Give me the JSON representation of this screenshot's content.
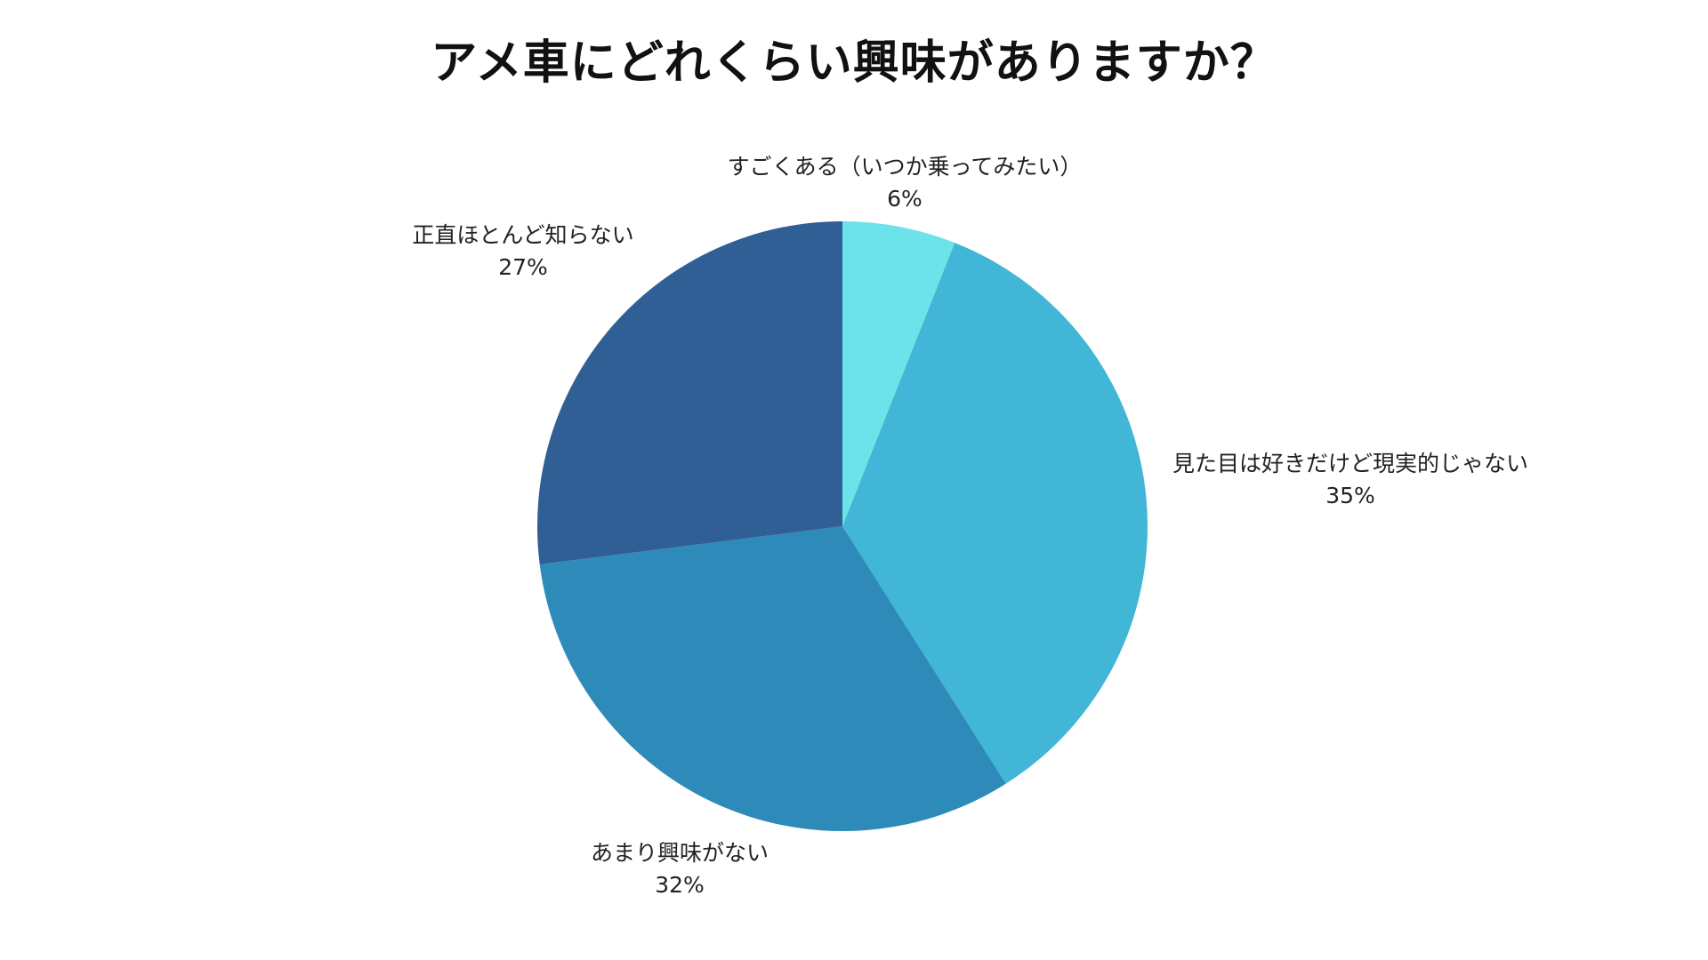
{
  "chart_data": {
    "type": "pie",
    "title": "アメ車にどれくらい興味がありますか？",
    "slices": [
      {
        "label": "すごくある（いつか乗ってみたい）",
        "value": 6,
        "value_label": "6%",
        "color": "#6BE3E8"
      },
      {
        "label": "見た目は好きだけど現実的じゃない",
        "value": 35,
        "value_label": "35%",
        "color": "#42B6D6"
      },
      {
        "label": "あまり興味がない",
        "value": 32,
        "value_label": "32%",
        "color": "#2E8BB9"
      },
      {
        "label": "正直ほとんど知らない",
        "value": 27,
        "value_label": "27%",
        "color": "#2F5F95"
      }
    ],
    "start_angle": "12 o'clock",
    "direction": "clockwise"
  }
}
